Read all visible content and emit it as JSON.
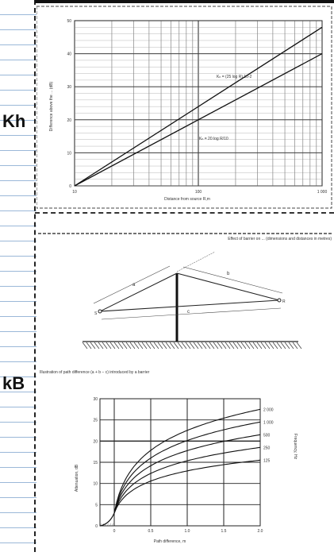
{
  "rows": [
    {
      "label": "Kh"
    },
    {
      "label": "kB"
    }
  ],
  "chart_top": {
    "xlabel": "Distance from source R,m",
    "ylabel": "Difference above the ... (dB)",
    "x_ticks": [
      "10",
      "100",
      "1 000"
    ],
    "y_ticks": [
      "0",
      "10",
      "20",
      "30",
      "40",
      "50"
    ],
    "eq_upper": "Kₕ = (25 log R) 10-2",
    "eq_lower": "Kₕ = 20 log R/10"
  },
  "diagram": {
    "caption_right": "Effect of barrier on ... (dimensions and distances in metres)",
    "label_a": "a",
    "label_b": "b",
    "label_c": "c",
    "label_s": "S",
    "label_r": "R",
    "caption_bottom": "Illustration of path difference (a + b − c) introduced by a barrier"
  },
  "chart_bottom": {
    "xlabel": "Path difference, m",
    "ylabel": "Attenuation, dB",
    "right_axis_label": "Frequency, Hz",
    "y_ticks": [
      "0",
      "5",
      "10",
      "15",
      "20",
      "25",
      "30"
    ],
    "x_ticks": [
      "0",
      "0.5",
      "1.0",
      "1.5",
      "2.0"
    ],
    "freq_labels": [
      "2 000",
      "1 000",
      "500",
      "250",
      "125"
    ]
  }
}
